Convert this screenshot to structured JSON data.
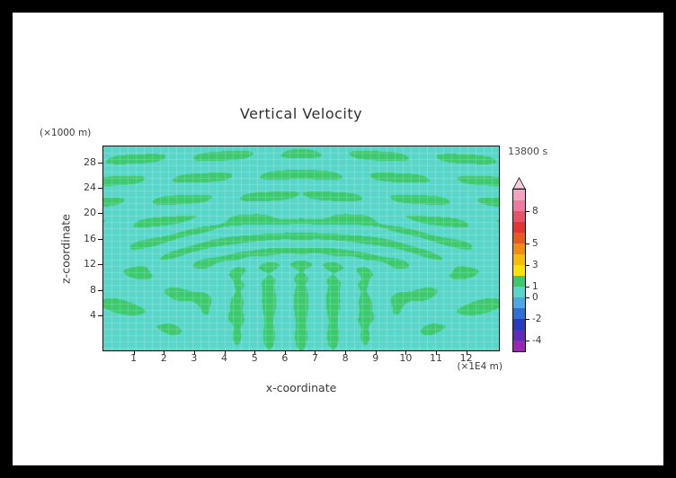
{
  "title": "Vertical Velocity",
  "time_label": "13800 s",
  "axes": {
    "x": {
      "label": "x-coordinate",
      "unit": "(×1E4 m)",
      "ticks": [
        1,
        2,
        3,
        4,
        5,
        6,
        7,
        8,
        9,
        10,
        11,
        12
      ],
      "range": [
        0,
        13.08
      ]
    },
    "y": {
      "label": "z-coordinate",
      "unit": "(×1000 m)",
      "ticks": [
        4,
        8,
        12,
        16,
        20,
        24,
        28
      ],
      "range": [
        -1.5,
        30.5
      ]
    }
  },
  "colorbar": {
    "arrow_color": "#F6CBDD",
    "segments": [
      "#F3A3C0",
      "#EE7AA2",
      "#E85367",
      "#E43434",
      "#E65B20",
      "#EE8C14",
      "#F6BC0A",
      "#FAE202",
      "#3FC96E",
      "#58D6C9",
      "#4FA6E6",
      "#2F6ED6",
      "#2A3ABF",
      "#5E2CB8",
      "#9A27B2"
    ],
    "labels": [
      {
        "text": "8",
        "boundary": 2
      },
      {
        "text": "5",
        "boundary": 5
      },
      {
        "text": "3",
        "boundary": 7
      },
      {
        "text": "1",
        "boundary": 9
      },
      {
        "text": "0",
        "boundary": 10
      },
      {
        "text": "-2",
        "boundary": 12
      },
      {
        "text": "-4",
        "boundary": 14
      }
    ]
  },
  "chart_data": {
    "type": "heatmap",
    "title": "Vertical Velocity",
    "xlabel": "x-coordinate (×1E4 m)",
    "ylabel": "z-coordinate (×1000 m)",
    "time": "13800 s",
    "x_range": [
      0,
      13.08
    ],
    "z_range": [
      -1.5,
      30.5
    ],
    "contour_levels_labeled": [
      8,
      5,
      3,
      1,
      0,
      -2,
      -4
    ],
    "field_colors": {
      "background": "#58D6C9",
      "blob": "#3CC96E"
    },
    "pattern": {
      "cx": 6.54,
      "base": -0.06,
      "threshold": 0.16,
      "arc": {
        "amp": 1.15,
        "k": 5.0,
        "zc": 5.0,
        "zs": 0.3,
        "z0": 15.3,
        "zw": 3.8,
        "xw": 5.0
      },
      "fingers": {
        "amp": 1.0,
        "kx": 5.9,
        "z0": 6.0,
        "zw": 6.5,
        "xw": 3.0,
        "mod_base": 0.85,
        "mod_amp": 0.35,
        "mod_k": 1.05
      },
      "layers": {
        "amp": 0.95,
        "kz": 1.9,
        "skew": 0.32,
        "phase": 0.6,
        "mod_base": 0.55,
        "mod_amp": 0.65,
        "mod_kx": 2.25,
        "mod_kz": 0.45,
        "on_z": 16.5,
        "on_w": 1.6
      },
      "sides": {
        "amp": 0.85,
        "kx": 2.1,
        "kz": 0.95,
        "z0": 6.5,
        "zw": 5.0,
        "xw": 3.2,
        "mod_base": 0.6,
        "mod_amp": 0.6,
        "mod_k": 1.25
      },
      "grid": {
        "color": "rgba(255,255,255,0.20)",
        "step_x": 9,
        "step_y": 7
      }
    }
  }
}
